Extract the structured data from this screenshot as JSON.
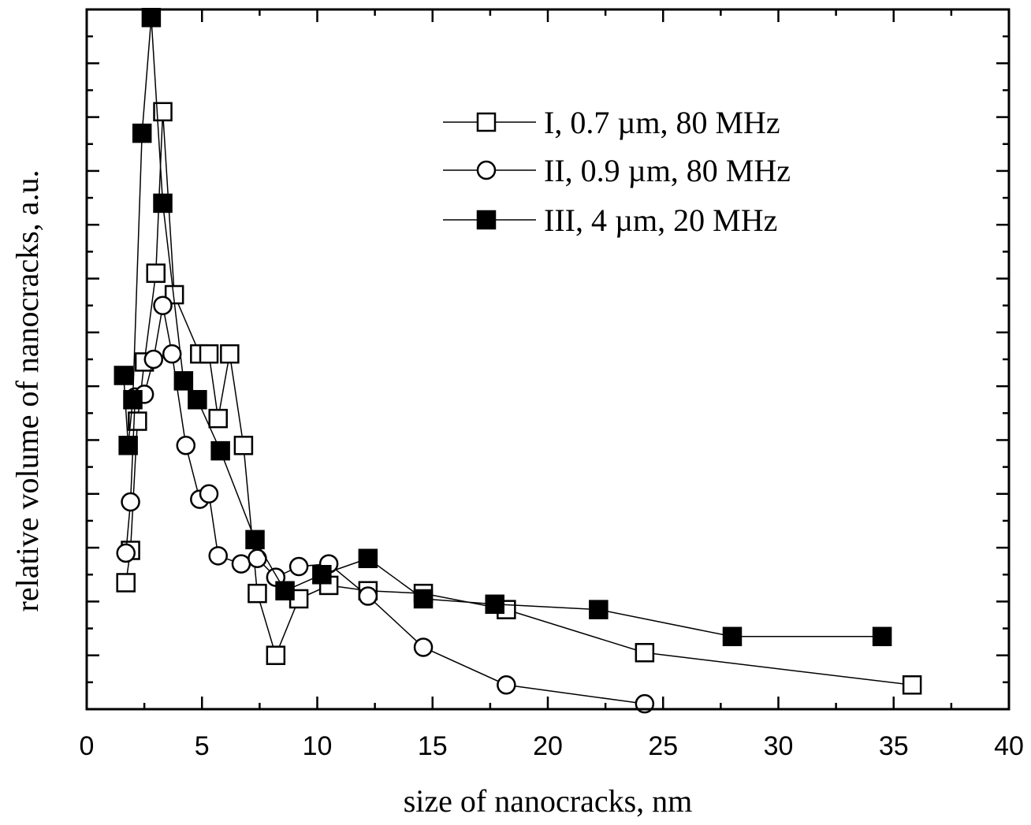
{
  "chart_data": {
    "type": "line",
    "xlabel": "size of nanocracks, nm",
    "ylabel": "relative volume of nanocracks, a.u.",
    "xlim": [
      0,
      40
    ],
    "ylim": [
      0,
      13
    ],
    "x_ticks": [
      0,
      5,
      10,
      15,
      20,
      25,
      30,
      35,
      40
    ],
    "x_tick_labels": [
      "0",
      "5",
      "10",
      "15",
      "20",
      "25",
      "30",
      "35",
      "40"
    ],
    "y_tick_labels_shown": false,
    "grid": false,
    "legend_position": "top-right",
    "series": [
      {
        "name": "I, 0.7 µm, 80 MHz",
        "marker": "open-square",
        "points": [
          [
            1.7,
            2.35
          ],
          [
            1.9,
            2.95
          ],
          [
            2.2,
            5.35
          ],
          [
            2.5,
            6.45
          ],
          [
            3.0,
            8.1
          ],
          [
            3.3,
            11.1
          ],
          [
            3.8,
            7.7
          ],
          [
            4.9,
            6.6
          ],
          [
            5.3,
            6.6
          ],
          [
            5.7,
            5.4
          ],
          [
            6.2,
            6.6
          ],
          [
            6.8,
            4.9
          ],
          [
            7.4,
            2.15
          ],
          [
            8.2,
            1.0
          ],
          [
            9.2,
            2.05
          ],
          [
            10.5,
            2.3
          ],
          [
            12.2,
            2.2
          ],
          [
            14.6,
            2.15
          ],
          [
            18.2,
            1.85
          ],
          [
            24.2,
            1.05
          ],
          [
            35.8,
            0.45
          ]
        ]
      },
      {
        "name": "II, 0.9 µm, 80 MHz",
        "marker": "open-circle",
        "points": [
          [
            1.7,
            2.9
          ],
          [
            1.9,
            3.85
          ],
          [
            2.1,
            5.8
          ],
          [
            2.5,
            5.85
          ],
          [
            2.9,
            6.5
          ],
          [
            3.3,
            7.5
          ],
          [
            3.7,
            6.6
          ],
          [
            4.3,
            4.9
          ],
          [
            4.9,
            3.9
          ],
          [
            5.3,
            4.0
          ],
          [
            5.7,
            2.85
          ],
          [
            6.7,
            2.7
          ],
          [
            7.4,
            2.8
          ],
          [
            8.2,
            2.45
          ],
          [
            9.2,
            2.65
          ],
          [
            10.5,
            2.7
          ],
          [
            12.2,
            2.1
          ],
          [
            14.6,
            1.15
          ],
          [
            18.2,
            0.45
          ],
          [
            24.2,
            0.1
          ]
        ]
      },
      {
        "name": "III, 4 µm, 20 MHz",
        "marker": "filled-square",
        "points": [
          [
            1.6,
            6.2
          ],
          [
            1.8,
            4.9
          ],
          [
            2.0,
            5.75
          ],
          [
            2.4,
            10.7
          ],
          [
            2.8,
            12.85
          ],
          [
            3.3,
            9.4
          ],
          [
            4.2,
            6.1
          ],
          [
            4.8,
            5.75
          ],
          [
            5.8,
            4.8
          ],
          [
            7.3,
            3.15
          ],
          [
            8.6,
            2.2
          ],
          [
            10.2,
            2.5
          ],
          [
            12.2,
            2.8
          ],
          [
            14.6,
            2.05
          ],
          [
            17.7,
            1.95
          ],
          [
            22.2,
            1.85
          ],
          [
            28.0,
            1.35
          ],
          [
            34.5,
            1.35
          ]
        ]
      }
    ]
  }
}
